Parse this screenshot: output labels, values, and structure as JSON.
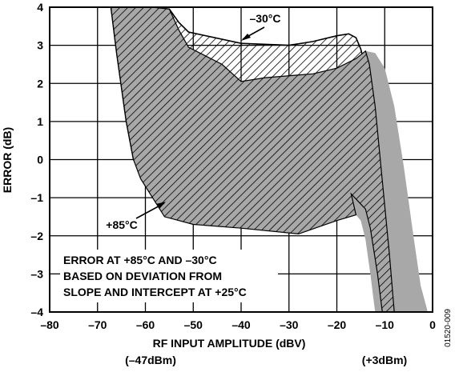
{
  "chart_data": {
    "type": "area",
    "title": "",
    "xlabel": "RF INPUT AMPLITUDE (dBV)",
    "ylabel": "ERROR (dB)",
    "xlim": [
      -80,
      0
    ],
    "ylim": [
      -4,
      4
    ],
    "xticks": [
      -80,
      -70,
      -60,
      -50,
      -40,
      -30,
      -20,
      -10,
      0
    ],
    "yticks": [
      -4,
      -3,
      -2,
      -1,
      0,
      1,
      2,
      3,
      4
    ],
    "x_tick_labels": [
      "–80",
      "–70",
      "–60",
      "–50",
      "–40",
      "–30",
      "–20",
      "–10",
      "0"
    ],
    "y_tick_labels": [
      "–4",
      "–3",
      "–2",
      "–1",
      "0",
      "1",
      "2",
      "3",
      "4"
    ],
    "grid": true,
    "sub_labels": {
      "left": "(–47dBm)",
      "right": "(+3dBm)"
    },
    "annotations": {
      "cold": "–30°C",
      "hot": "+85°C",
      "note_lines": [
        "ERROR AT +85°C AND –30°C",
        "BASED ON DEVIATION FROM",
        "SLOPE AND INTERCEPT AT +25°C"
      ]
    },
    "figure_id": "01520-009",
    "series": [
      {
        "name": "–30°C",
        "fill": "hatched",
        "color": "#000000",
        "upper": [
          [
            -58.5,
            4.0
          ],
          [
            -55,
            3.95
          ],
          [
            -53,
            3.6
          ],
          [
            -51,
            3.35
          ],
          [
            -40,
            3.05
          ],
          [
            -30,
            3.0
          ],
          [
            -25,
            3.1
          ],
          [
            -20,
            3.25
          ],
          [
            -17.5,
            3.3
          ],
          [
            -16,
            3.2
          ],
          [
            -15,
            2.9
          ],
          [
            -12,
            1.4
          ],
          [
            -9,
            -2.5
          ],
          [
            -8,
            -4.0
          ]
        ],
        "lower": [
          [
            -67.2,
            4.0
          ],
          [
            -66,
            2.8
          ],
          [
            -64,
            1.0
          ],
          [
            -62.5,
            0.0
          ],
          [
            -61,
            -0.3
          ],
          [
            -59,
            -0.35
          ],
          [
            -57,
            -0.4
          ],
          [
            -55,
            -0.8
          ],
          [
            -50,
            -1.0
          ],
          [
            -40,
            -1.15
          ],
          [
            -28,
            -1.25
          ],
          [
            -20,
            -1.05
          ],
          [
            -17,
            -0.9
          ],
          [
            -14,
            -1.3
          ],
          [
            -13,
            -1.8
          ],
          [
            -11.5,
            -3.0
          ],
          [
            -10.5,
            -4.0
          ]
        ]
      },
      {
        "name": "+85°C",
        "fill": "solid",
        "color": "#a8a8a8",
        "upper": [
          [
            -58.5,
            4.0
          ],
          [
            -55,
            3.95
          ],
          [
            -53,
            3.4
          ],
          [
            -51,
            2.95
          ],
          [
            -44,
            2.5
          ],
          [
            -40,
            2.05
          ],
          [
            -35,
            2.15
          ],
          [
            -25,
            2.25
          ],
          [
            -20,
            2.4
          ],
          [
            -16,
            2.65
          ],
          [
            -14,
            2.85
          ],
          [
            -12,
            2.8
          ],
          [
            -10,
            2.4
          ],
          [
            -8,
            1.4
          ],
          [
            -6,
            -0.2
          ],
          [
            -4,
            -2.0
          ],
          [
            -2.5,
            -3.3
          ],
          [
            -1,
            -4.0
          ]
        ],
        "lower": [
          [
            -67.2,
            4.0
          ],
          [
            -66,
            2.8
          ],
          [
            -64,
            1.0
          ],
          [
            -62.5,
            0.0
          ],
          [
            -61,
            -0.5
          ],
          [
            -59,
            -0.9
          ],
          [
            -56,
            -1.5
          ],
          [
            -50,
            -1.7
          ],
          [
            -40,
            -1.8
          ],
          [
            -28,
            -1.95
          ],
          [
            -20,
            -1.6
          ],
          [
            -16,
            -1.45
          ],
          [
            -15,
            -1.6
          ],
          [
            -14,
            -2.1
          ],
          [
            -13,
            -3.0
          ],
          [
            -12,
            -4.0
          ]
        ]
      }
    ]
  }
}
